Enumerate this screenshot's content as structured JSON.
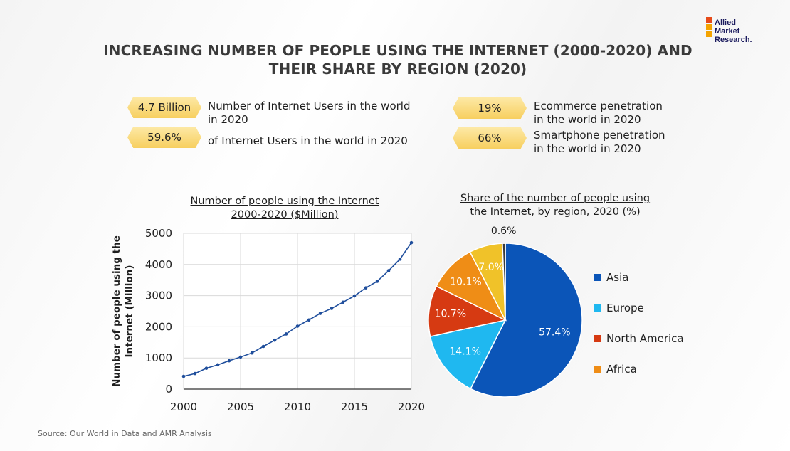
{
  "title_line1": "INCREASING NUMBER OF PEOPLE USING THE INTERNET (2000-2020) AND",
  "title_line2": "THEIR SHARE BY REGION (2020)",
  "logo": {
    "line1": "Allied",
    "line2": "Market",
    "line3": "Research.",
    "colors": [
      "#e64a19",
      "#f4a300",
      "#f4a300",
      "#1e4fd0"
    ]
  },
  "stats": [
    {
      "value": "4.7 Billion",
      "line1": "Number of Internet Users in the world",
      "line2": "in 2020"
    },
    {
      "value": "59.6%",
      "line1": "of Internet Users in the world in 2020",
      "line2": ""
    },
    {
      "value": "19%",
      "line1": "Ecommerce penetration",
      "line2": "in the world in 2020"
    },
    {
      "value": "66%",
      "line1": "Smartphone penetration",
      "line2": "in the world in 2020"
    }
  ],
  "source": "Source: Our World in Data and AMR Analysis",
  "chart_data": [
    {
      "type": "line",
      "title": "Number of people using the Internet 2000-2020 ($Million)",
      "title_line1": "Number of people using the Internet",
      "title_line2": "2000-2020 ($Million)",
      "ylabel": "Number of people using the Internet (Million)",
      "ylabel_line1": "Number of people using the",
      "ylabel_line2": "Internet (Million)",
      "xlabel": "",
      "xlim": [
        2000,
        2020
      ],
      "ylim": [
        0,
        5000
      ],
      "xticks": [
        2000,
        2005,
        2010,
        2015,
        2020
      ],
      "yticks": [
        0,
        1000,
        2000,
        3000,
        4000,
        5000
      ],
      "grid": true,
      "color": "#1f4e9c",
      "x": [
        2000,
        2001,
        2002,
        2003,
        2004,
        2005,
        2006,
        2007,
        2008,
        2009,
        2010,
        2011,
        2012,
        2013,
        2014,
        2015,
        2016,
        2017,
        2018,
        2019,
        2020
      ],
      "y": [
        410,
        500,
        670,
        780,
        910,
        1030,
        1160,
        1370,
        1570,
        1770,
        2020,
        2220,
        2430,
        2590,
        2790,
        2990,
        3250,
        3460,
        3800,
        4170,
        4700
      ]
    },
    {
      "type": "pie",
      "title": "Share of the number of people using the Internet, by region, 2020 (%)",
      "title_line1": "Share of the number of people using",
      "title_line2": "the Internet, by region, 2020 (%)",
      "slices": [
        {
          "label": "Asia",
          "value": 57.4,
          "display": "57.4%",
          "color": "#0b55b8"
        },
        {
          "label": "Europe",
          "value": 14.1,
          "display": "14.1%",
          "color": "#1fb8f0"
        },
        {
          "label": "North America",
          "value": 10.7,
          "display": "10.7%",
          "color": "#d63a12"
        },
        {
          "label": "Africa",
          "value": 10.1,
          "display": "10.1%",
          "color": "#ef8d16"
        },
        {
          "label": "",
          "value": 7.0,
          "display": "7.0%",
          "color": "#f0c229"
        },
        {
          "label": "",
          "value": 0.6,
          "display": "0.6%",
          "color": "#3a3a3a"
        }
      ],
      "legend": [
        "Asia",
        "Europe",
        "North America",
        "Africa"
      ],
      "legend_placement": "right"
    }
  ]
}
